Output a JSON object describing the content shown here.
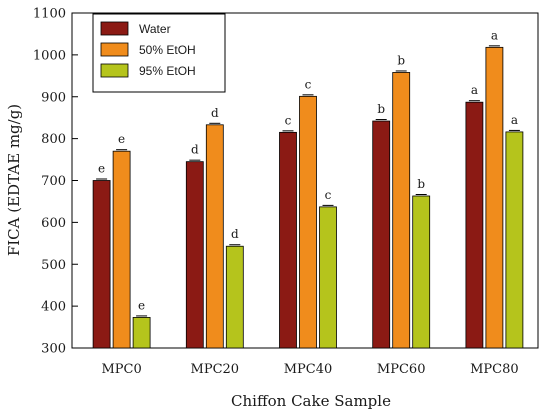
{
  "chart_data": {
    "type": "bar",
    "title": "",
    "xlabel": "Chiffon Cake Sample",
    "ylabel": "FICA (EDTAE mg/g)",
    "ylim": [
      300,
      1100
    ],
    "yticks": [
      300,
      400,
      500,
      600,
      700,
      800,
      900,
      1000,
      1100
    ],
    "categories": [
      "MPC0",
      "MPC20",
      "MPC40",
      "MPC60",
      "MPC80"
    ],
    "series": [
      {
        "name": "Water",
        "color": "#8b1a14",
        "values": [
          700,
          745,
          815,
          842,
          887
        ],
        "labels": [
          "e",
          "d",
          "c",
          "b",
          "a"
        ]
      },
      {
        "name": "50% EtOH",
        "color": "#f08c1c",
        "values": [
          770,
          833,
          901,
          958,
          1018
        ],
        "labels": [
          "e",
          "d",
          "c",
          "b",
          "a"
        ]
      },
      {
        "name": "95% EtOH",
        "color": "#b5c41c",
        "values": [
          373,
          543,
          637,
          663,
          816
        ],
        "labels": [
          "e",
          "d",
          "c",
          "b",
          "a"
        ]
      }
    ],
    "legend": {
      "position": "top-left",
      "entries": [
        "Water",
        "50% EtOH",
        "95% EtOH"
      ]
    },
    "grid": false,
    "error_bars": true
  }
}
